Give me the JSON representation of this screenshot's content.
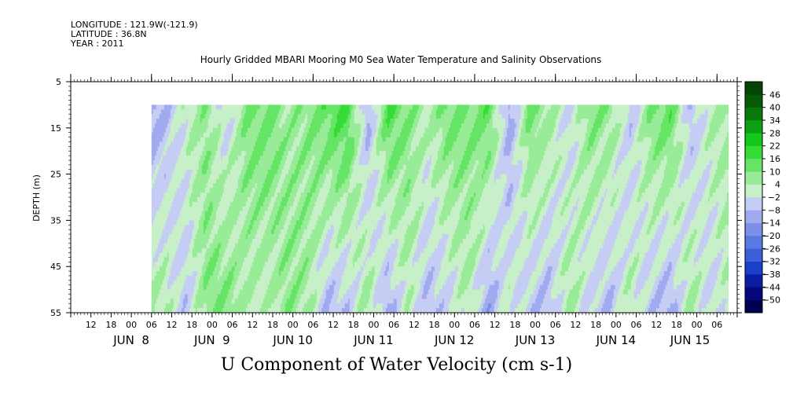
{
  "header": {
    "longitude": "LONGITUDE : 121.9W(-121.9)",
    "latitude": "LATITUDE : 36.8N",
    "year": "YEAR : 2011",
    "title": "Hourly Gridded MBARI Mooring M0 Sea Water Temperature and Salinity Observations"
  },
  "chart_data": {
    "type": "heatmap",
    "title": "U Component of Water Velocity (cm s-1)",
    "ylabel": "DEPTH (m)",
    "xlabel": "",
    "y_range": [
      5,
      55
    ],
    "y_inverted": true,
    "y_ticks": [
      5,
      15,
      25,
      35,
      45,
      55
    ],
    "x_range": [
      "2011-06-07T06:00",
      "2011-06-15T12:00"
    ],
    "data_x_range": [
      "2011-06-08T06:00",
      "2011-06-15T09:00"
    ],
    "data_depth_range": [
      10,
      55
    ],
    "x_hour_ticks": [
      "12",
      "18",
      "00",
      "06",
      "12",
      "18",
      "00",
      "06",
      "12",
      "18",
      "00",
      "06",
      "12",
      "18",
      "00",
      "06",
      "12",
      "18",
      "00",
      "06",
      "12",
      "18",
      "00",
      "06",
      "12",
      "18",
      "00",
      "06",
      "12",
      "18",
      "00",
      "06"
    ],
    "x_day_labels": [
      "JUN  8",
      "JUN  9",
      "JUN 10",
      "JUN 11",
      "JUN 12",
      "JUN 13",
      "JUN 14",
      "JUN 15"
    ],
    "colorbar": {
      "levels": [
        -50,
        -44,
        -38,
        -32,
        -26,
        -20,
        -14,
        -8,
        -2,
        4,
        10,
        16,
        22,
        28,
        34,
        40,
        46
      ],
      "colors": [
        "#000050",
        "#06087a",
        "#0b1ea3",
        "#1a3fc9",
        "#3c5fd8",
        "#5a78e2",
        "#7b8fe9",
        "#a0abef",
        "#c6cdf4",
        "#c8f0c8",
        "#98ec98",
        "#66e466",
        "#36dc36",
        "#14c81a",
        "#0da010",
        "#087a0a",
        "#055a06",
        "#044404"
      ]
    },
    "profile_series": [
      {
        "hours": [
          0,
          4,
          10,
          16,
          22,
          28,
          34,
          40,
          46,
          52,
          58,
          64,
          70,
          76,
          82,
          88,
          94,
          100,
          106,
          112,
          118,
          124,
          130,
          136,
          142,
          148,
          154,
          160,
          166,
          171
        ],
        "surface_u": [
          -12,
          -8,
          2,
          8,
          -4,
          10,
          12,
          6,
          8,
          14,
          18,
          -10,
          16,
          10,
          4,
          12,
          10,
          14,
          -12,
          12,
          6,
          -4,
          10,
          8,
          -6,
          10,
          14,
          -8,
          4,
          6
        ],
        "bottom_u": [
          6,
          4,
          -6,
          8,
          10,
          4,
          2,
          8,
          6,
          -8,
          -6,
          6,
          -10,
          2,
          -8,
          -4,
          4,
          -12,
          2,
          -6,
          -8,
          6,
          -4,
          -8,
          4,
          -6,
          -10,
          6,
          -4,
          2
        ]
      }
    ]
  }
}
